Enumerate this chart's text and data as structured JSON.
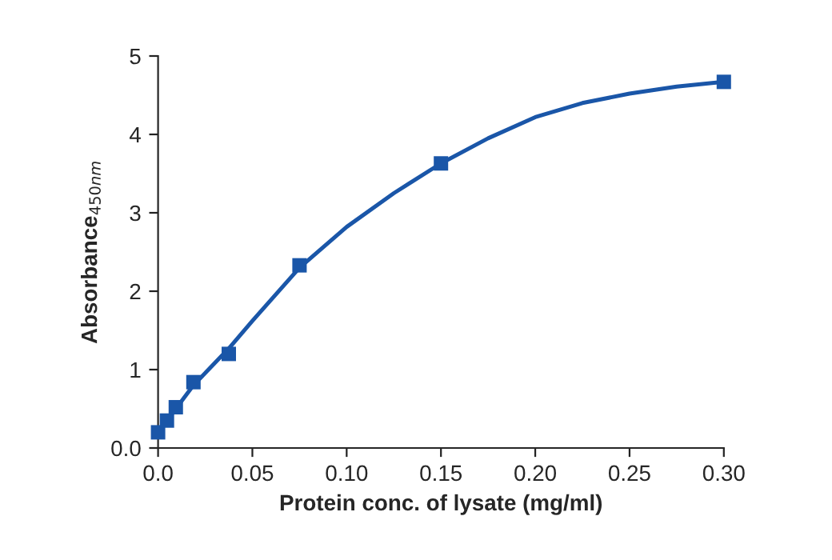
{
  "chart_data": {
    "type": "scatter",
    "xlabel": "Protein conc. of lysate (mg/ml)",
    "ylabel": "Absorbance$_{450nm}$",
    "xlim": [
      0,
      0.3
    ],
    "ylim": [
      0,
      5
    ],
    "xticks": [
      {
        "value": 0,
        "label": "0.0"
      },
      {
        "value": 0.05,
        "label": "0.05"
      },
      {
        "value": 0.1,
        "label": "0.10"
      },
      {
        "value": 0.15,
        "label": "0.15"
      },
      {
        "value": 0.2,
        "label": "0.20"
      },
      {
        "value": 0.25,
        "label": "0.25"
      },
      {
        "value": 0.3,
        "label": "0.30"
      }
    ],
    "yticks": [
      {
        "value": 0,
        "label": "0.0"
      },
      1,
      2,
      3,
      4,
      5
    ],
    "grid": false,
    "legend": false,
    "series": [
      {
        "color": "#1a56a8",
        "marker": "square",
        "x": [
          0,
          0.0047,
          0.0094,
          0.01875,
          0.0375,
          0.075,
          0.15,
          0.3
        ],
        "values": [
          0.2,
          0.35,
          0.52,
          0.84,
          1.2,
          2.33,
          3.63,
          4.67
        ]
      },
      {
        "type": "line",
        "color": "#1a56a8",
        "marker": "none",
        "line_style": "solid",
        "x": [
          0,
          0.0047,
          0.0094,
          0.01875,
          0.0375,
          0.05,
          0.075,
          0.1,
          0.125,
          0.15,
          0.175,
          0.2,
          0.225,
          0.25,
          0.275,
          0.3
        ],
        "values": [
          0.2,
          0.35,
          0.5,
          0.8,
          1.27,
          1.62,
          2.3,
          2.82,
          3.25,
          3.63,
          3.95,
          4.22,
          4.4,
          4.52,
          4.61,
          4.67
        ]
      }
    ]
  }
}
